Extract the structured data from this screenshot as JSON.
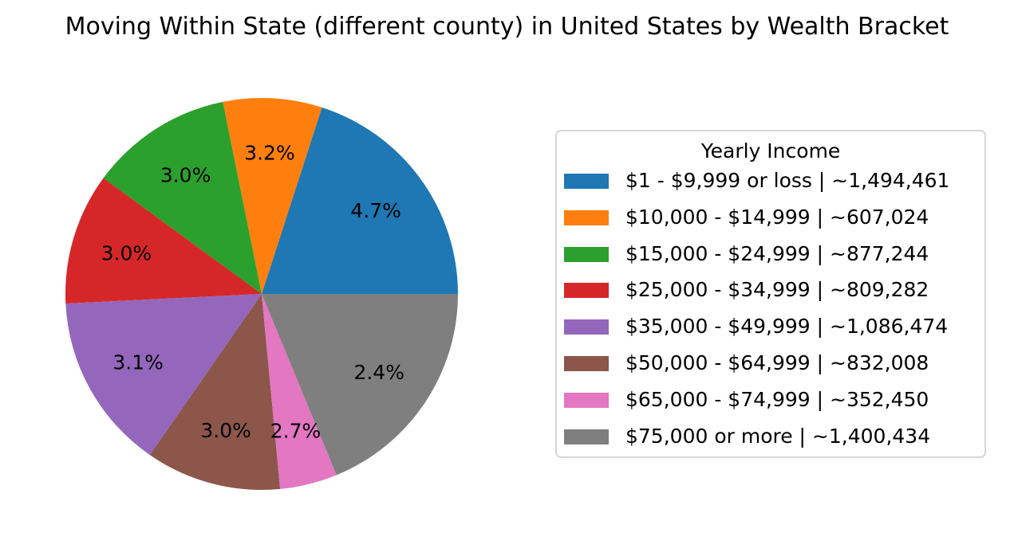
{
  "chart_data": {
    "type": "pie",
    "title": "Moving Within State (different county) in United States by Wealth Bracket",
    "legend_title": "Yearly Income",
    "legend_position": "right",
    "slices": [
      {
        "label": "$1 - $9,999 or loss  |  ~1,494,461",
        "value": 1494461,
        "pct_label": "4.7%",
        "color": "#1f77b4"
      },
      {
        "label": "$10,000 - $14,999  |  ~607,024",
        "value": 607024,
        "pct_label": "3.2%",
        "color": "#ff7f0e"
      },
      {
        "label": "$15,000 - $24,999  |  ~877,244",
        "value": 877244,
        "pct_label": "3.0%",
        "color": "#2ca02c"
      },
      {
        "label": "$25,000 - $34,999  |  ~809,282",
        "value": 809282,
        "pct_label": "3.0%",
        "color": "#d62728"
      },
      {
        "label": "$35,000 - $49,999  |  ~1,086,474",
        "value": 1086474,
        "pct_label": "3.1%",
        "color": "#9467bd"
      },
      {
        "label": "$50,000 - $64,999  |  ~832,008",
        "value": 832008,
        "pct_label": "3.0%",
        "color": "#8c564b"
      },
      {
        "label": "$65,000 - $74,999  |  ~352,450",
        "value": 352450,
        "pct_label": "2.7%",
        "color": "#e377c2"
      },
      {
        "label": "$75,000 or more  |  ~1,400,434",
        "value": 1400434,
        "pct_label": "2.4%",
        "color": "#7f7f7f"
      }
    ]
  }
}
